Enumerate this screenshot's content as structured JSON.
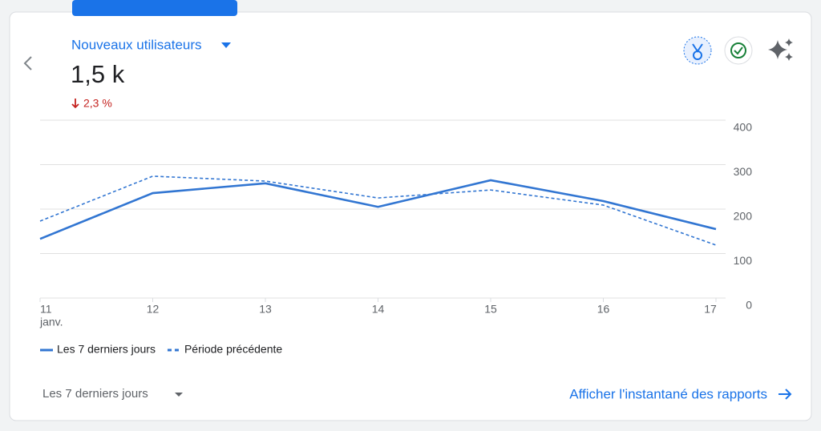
{
  "header": {
    "metric": "Nouveaux utilisateurs",
    "value": "1,5 k",
    "change": "2,3 %"
  },
  "chart_data": {
    "type": "line",
    "categories": [
      "11",
      "12",
      "13",
      "14",
      "15",
      "16",
      "17"
    ],
    "x_sublabel": "janv.",
    "series": [
      {
        "name": "Les 7 derniers jours",
        "color": "#3276d2",
        "dashed": false,
        "values": [
          133,
          236,
          258,
          205,
          265,
          218,
          155
        ]
      },
      {
        "name": "Période précédente",
        "color": "#3276d2",
        "dashed": true,
        "values": [
          173,
          274,
          263,
          225,
          243,
          209,
          119
        ]
      }
    ],
    "ylim": [
      0,
      400
    ],
    "yticks": [
      0,
      100,
      200,
      300,
      400
    ],
    "grid": true
  },
  "footer": {
    "period": "Les 7 derniers jours",
    "link": "Afficher l'instantané des rapports"
  }
}
